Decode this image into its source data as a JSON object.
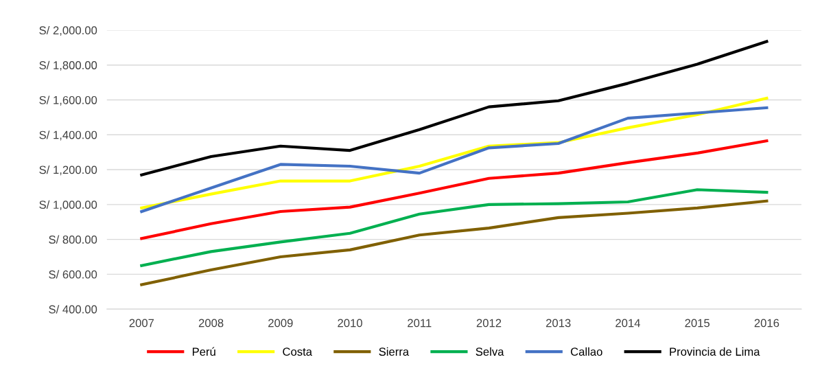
{
  "chart_data": {
    "type": "line",
    "categories": [
      "2007",
      "2008",
      "2009",
      "2010",
      "2011",
      "2012",
      "2013",
      "2014",
      "2015",
      "2016"
    ],
    "ylim": [
      400,
      2000
    ],
    "yticks": [
      {
        "value": 400,
        "label": "S/ 400.00"
      },
      {
        "value": 600,
        "label": "S/ 600.00"
      },
      {
        "value": 800,
        "label": "S/ 800.00"
      },
      {
        "value": 1000,
        "label": "S/ 1,000.00"
      },
      {
        "value": 1200,
        "label": "S/ 1,200.00"
      },
      {
        "value": 1400,
        "label": "S/ 1,400.00"
      },
      {
        "value": 1600,
        "label": "S/ 1,600.00"
      },
      {
        "value": 1800,
        "label": "S/ 1,800.00"
      },
      {
        "value": 2000,
        "label": "S/ 2,000.00"
      }
    ],
    "grid": "y",
    "legend": "bottom",
    "line_style": "solid",
    "marker": "none",
    "series": [
      {
        "name": "Perú",
        "color": "#ff0000",
        "values": [
          805,
          890,
          960,
          985,
          1065,
          1150,
          1180,
          1240,
          1295,
          1365
        ]
      },
      {
        "name": "Costa",
        "color": "#ffff00",
        "values": [
          980,
          1060,
          1135,
          1135,
          1220,
          1335,
          1355,
          1440,
          1515,
          1610
        ]
      },
      {
        "name": "Sierra",
        "color": "#806000",
        "values": [
          540,
          625,
          700,
          740,
          825,
          865,
          925,
          950,
          980,
          1020
        ]
      },
      {
        "name": "Selva",
        "color": "#00b050",
        "values": [
          650,
          730,
          785,
          835,
          945,
          1000,
          1005,
          1015,
          1085,
          1070
        ]
      },
      {
        "name": "Callao",
        "color": "#4472c4",
        "values": [
          960,
          1095,
          1230,
          1220,
          1180,
          1325,
          1350,
          1495,
          1525,
          1555
        ]
      },
      {
        "name": "Provincia de Lima",
        "color": "#000000",
        "values": [
          1170,
          1275,
          1335,
          1310,
          1430,
          1560,
          1595,
          1695,
          1805,
          1935
        ]
      }
    ]
  }
}
